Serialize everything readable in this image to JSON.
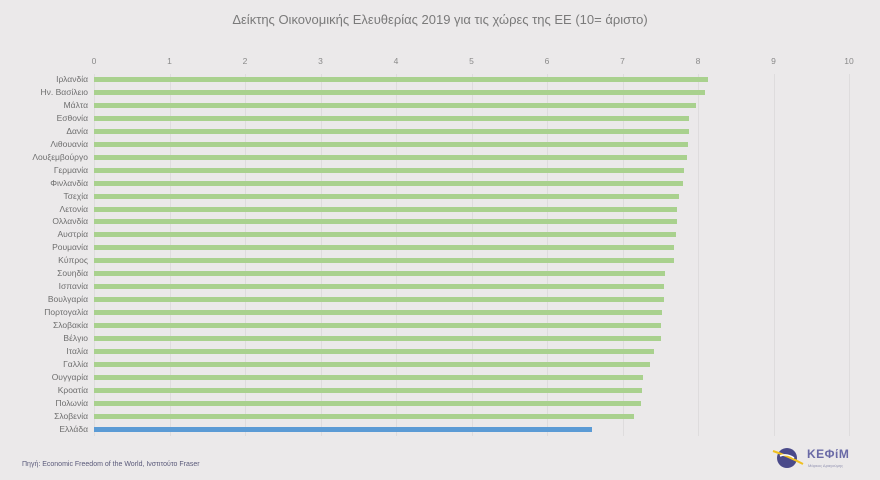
{
  "chart_data": {
    "type": "bar",
    "orientation": "horizontal",
    "title": "Δείκτης Οικονομικής Ελευθερίας 2019 για τις χώρες της ΕΕ (10= άριστο)",
    "xlabel": "",
    "ylabel": "",
    "xlim": [
      0,
      10
    ],
    "x_ticks": [
      "0",
      "1",
      "2",
      "3",
      "4",
      "5",
      "6",
      "7",
      "8",
      "9",
      "10"
    ],
    "grid": true,
    "legend": null,
    "colors": {
      "default": "#a9d18e",
      "highlight": "#5b9bd5"
    },
    "highlight_category": "Ελλάδα",
    "categories": [
      "Ιρλανδία",
      "Ην. Βασίλειο",
      "Μάλτα",
      "Εσθονία",
      "Δανία",
      "Λιθουανία",
      "Λουξεμβούργο",
      "Γερμανία",
      "Φινλανδία",
      "Τσεχία",
      "Λετονία",
      "Ολλανδία",
      "Αυστρία",
      "Ρουμανία",
      "Κύπρος",
      "Σουηδία",
      "Ισπανία",
      "Βουλγαρία",
      "Πορτογαλία",
      "Σλοβακία",
      "Βέλγιο",
      "Ιταλία",
      "Γαλλία",
      "Ουγγαρία",
      "Κροατία",
      "Πολωνία",
      "Σλοβενία",
      "Ελλάδα"
    ],
    "values": [
      8.13,
      8.09,
      7.97,
      7.88,
      7.88,
      7.87,
      7.85,
      7.81,
      7.8,
      7.75,
      7.72,
      7.72,
      7.71,
      7.68,
      7.68,
      7.56,
      7.55,
      7.55,
      7.52,
      7.51,
      7.51,
      7.42,
      7.36,
      7.27,
      7.26,
      7.25,
      7.15,
      6.6
    ]
  },
  "footer": {
    "source": "Πηγή: Economic Freedom of the World, Ινστιτούτο Fraser",
    "logo_text": "ΚΕΦίΜ",
    "logo_subtitle": "Μάρκος Δραγούμης"
  }
}
